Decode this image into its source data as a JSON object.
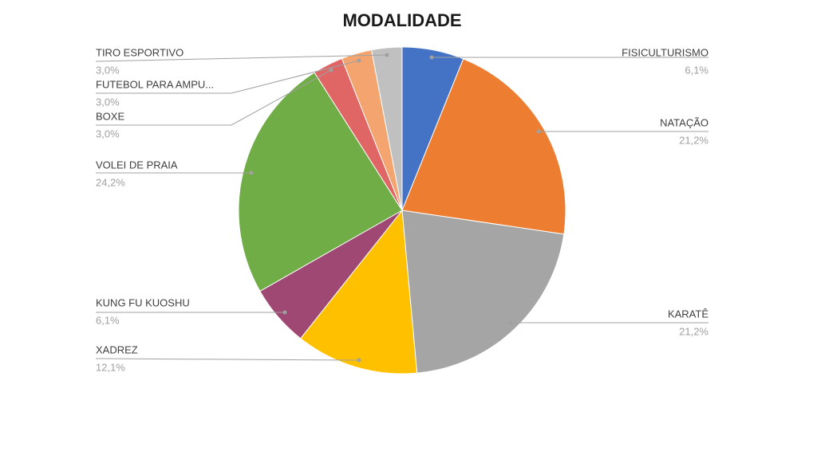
{
  "chart_data": {
    "type": "pie",
    "title": "MODALIDADE",
    "categories": [
      "FISICULTURISMO",
      "NATAÇÃO",
      "KARATÊ",
      "XADREZ",
      "KUNG FU KUOSHU",
      "VOLEI DE PRAIA",
      "BOXE",
      "FUTEBOL PARA AMPU...",
      "TIRO ESPORTIVO"
    ],
    "values": [
      6.1,
      21.2,
      21.2,
      12.1,
      6.1,
      24.2,
      3.0,
      3.0,
      3.0
    ],
    "value_labels": [
      "6,1%",
      "21,2%",
      "21,2%",
      "12,1%",
      "6,1%",
      "24,2%",
      "3,0%",
      "3,0%",
      "3,0%"
    ],
    "colors": [
      "#4472c4",
      "#ed7d31",
      "#a5a5a5",
      "#ffc000",
      "#9e4873",
      "#70ad47",
      "#e06666",
      "#f4a46e",
      "#c0c0c0"
    ]
  }
}
